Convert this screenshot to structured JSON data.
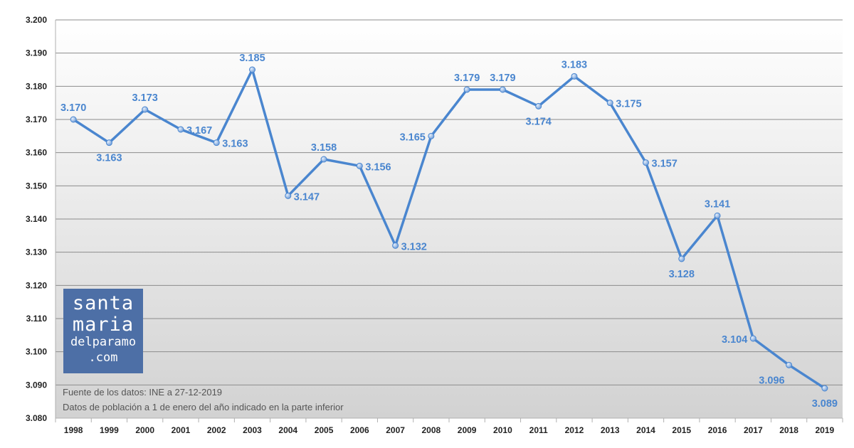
{
  "chart_data": {
    "type": "line",
    "title": "",
    "xlabel": "",
    "ylabel": "",
    "categories": [
      "1998",
      "1999",
      "2000",
      "2001",
      "2002",
      "2003",
      "2004",
      "2005",
      "2006",
      "2007",
      "2008",
      "2009",
      "2010",
      "2011",
      "2012",
      "2013",
      "2014",
      "2015",
      "2016",
      "2017",
      "2018",
      "2019"
    ],
    "series": [
      {
        "values": [
          3170,
          3163,
          3173,
          3167,
          3163,
          3185,
          3147,
          3158,
          3156,
          3132,
          3165,
          3179,
          3179,
          3174,
          3183,
          3175,
          3157,
          3128,
          3141,
          3104,
          3096,
          3089
        ],
        "labels": [
          "3.170",
          "3.163",
          "3.173",
          "3.167",
          "3.163",
          "3.185",
          "3.147",
          "3.158",
          "3.156",
          "3.132",
          "3.165",
          "3.179",
          "3.179",
          "3.174",
          "3.183",
          "3.175",
          "3.157",
          "3.128",
          "3.141",
          "3.104",
          "3.096",
          "3.089"
        ]
      }
    ],
    "ylim": [
      3080,
      3200
    ],
    "ytick_values": [
      3080,
      3090,
      3100,
      3110,
      3120,
      3130,
      3140,
      3150,
      3160,
      3170,
      3180,
      3190,
      3200
    ],
    "ytick_labels": [
      "3.080",
      "3.090",
      "3.100",
      "3.110",
      "3.120",
      "3.130",
      "3.140",
      "3.150",
      "3.160",
      "3.170",
      "3.180",
      "3.190",
      "3.200"
    ],
    "grid": true,
    "legend": "none",
    "line_color": "#4a86cf",
    "label_color": "#4a86cf",
    "annotations": [
      "Fuente de los datos: INE a 27-12-2019",
      "Datos de población a 1 de enero del año indicado en la parte inferior"
    ]
  },
  "logo": {
    "line1": "santa",
    "line2": "maria",
    "line3": "delparamo",
    "line4": ".com",
    "background": "#4d6fa6"
  }
}
